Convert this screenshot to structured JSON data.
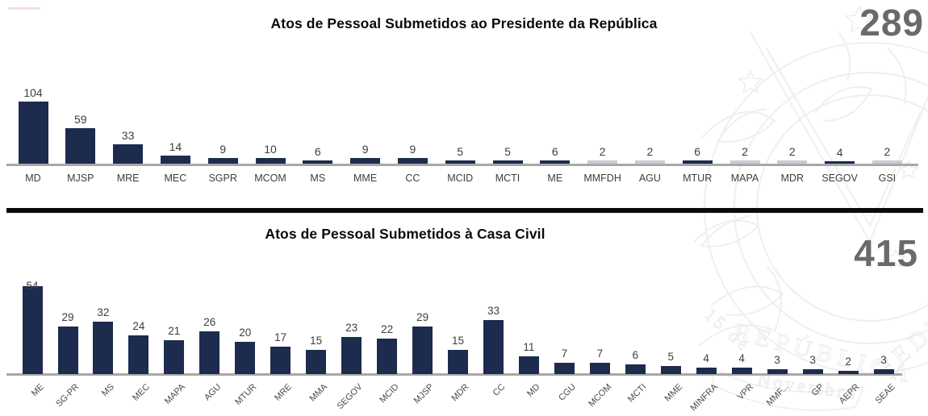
{
  "chart_data": [
    {
      "type": "bar",
      "title": "Atos de Pessoal Submetidos ao Presidente da República",
      "total_label": "289",
      "categories": [
        "MD",
        "MJSP",
        "MRE",
        "MEC",
        "SGPR",
        "MCOM",
        "MS",
        "MME",
        "CC",
        "MCID",
        "MCTI",
        "ME",
        "MMFDH",
        "AGU",
        "MTUR",
        "MAPA",
        "MDR",
        "SEGOV",
        "GSI"
      ],
      "values": [
        104,
        59,
        33,
        14,
        9,
        10,
        6,
        9,
        9,
        5,
        5,
        6,
        2,
        2,
        6,
        2,
        2,
        4,
        2
      ],
      "muted_indices": [
        12,
        13,
        15,
        16,
        18
      ],
      "bar_color": "#1c2b4e",
      "muted_bar_color": "#c7ccd5",
      "axis_color": "#a8a8a8",
      "value_label_color": "#3d3d3d",
      "category_label_color": "#3d3d3d",
      "total_color": "#6a6a6a",
      "ylim": [
        0,
        110
      ],
      "grid": false,
      "legend_position": "none"
    },
    {
      "type": "bar",
      "title": "Atos de Pessoal Submetidos à Casa Civil",
      "total_label": "415",
      "categories": [
        "ME",
        "SG-PR",
        "MS",
        "MEC",
        "MAPA",
        "AGU",
        "MTUR",
        "MRE",
        "MMA",
        "SEGOV",
        "MCID",
        "MJSP",
        "MDR",
        "CC",
        "MD",
        "CGU",
        "MCOM",
        "MCTI",
        "MME",
        "MINFRA",
        "VPR",
        "MMF...",
        "GP",
        "AEPR",
        "SEAE"
      ],
      "values": [
        54,
        29,
        32,
        24,
        21,
        26,
        20,
        17,
        15,
        23,
        22,
        29,
        15,
        33,
        11,
        7,
        7,
        6,
        5,
        4,
        4,
        3,
        3,
        2,
        3
      ],
      "muted_indices": [],
      "bar_color": "#1c2b4e",
      "muted_bar_color": "#c7ccd5",
      "axis_color": "#a8a8a8",
      "value_label_color": "#3d3d3d",
      "category_label_color": "#4a4a4a",
      "total_color": "#6a6a6a",
      "ylim": [
        0,
        55
      ],
      "grid": false,
      "legend_position": "none"
    }
  ],
  "watermark": {
    "name": "brazilian-coat-of-arms-watermark",
    "color": "#efefef"
  }
}
